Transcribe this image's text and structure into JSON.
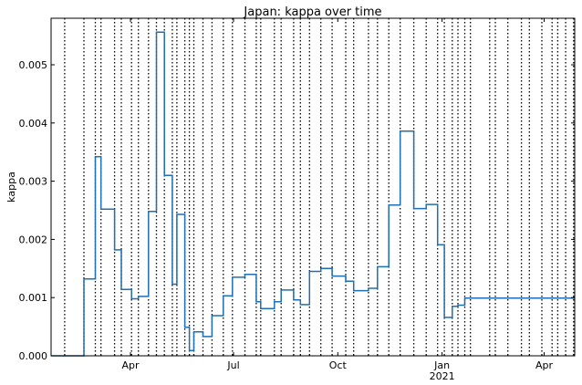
{
  "chart_data": {
    "type": "line",
    "step": "post",
    "title": "Japan: kappa over time",
    "ylabel": "kappa",
    "xlabel": "",
    "xlim": [
      "2020-01-22",
      "2021-04-28"
    ],
    "ylim": [
      0,
      0.0058
    ],
    "y_ticks": [
      "0.000",
      "0.001",
      "0.002",
      "0.003",
      "0.004",
      "0.005"
    ],
    "y_tick_values": [
      0,
      0.001,
      0.002,
      0.003,
      0.004,
      0.005
    ],
    "x_ticks": [
      {
        "date": "2020-04-01",
        "label": "Apr",
        "sublabel": ""
      },
      {
        "date": "2020-07-01",
        "label": "Jul",
        "sublabel": ""
      },
      {
        "date": "2020-10-01",
        "label": "Oct",
        "sublabel": ""
      },
      {
        "date": "2021-01-01",
        "label": "Jan",
        "sublabel": "2021"
      },
      {
        "date": "2021-04-01",
        "label": "Apr",
        "sublabel": ""
      }
    ],
    "change_dates": [
      "2020-02-03",
      "2020-02-20",
      "2020-03-01",
      "2020-03-06",
      "2020-03-18",
      "2020-03-24",
      "2020-04-02",
      "2020-04-08",
      "2020-04-17",
      "2020-04-24",
      "2020-05-01",
      "2020-05-08",
      "2020-05-12",
      "2020-05-19",
      "2020-05-23",
      "2020-05-27",
      "2020-06-04",
      "2020-06-12",
      "2020-06-22",
      "2020-06-30",
      "2020-07-11",
      "2020-07-21",
      "2020-07-25",
      "2020-08-06",
      "2020-08-12",
      "2020-08-23",
      "2020-08-29",
      "2020-09-06",
      "2020-09-16",
      "2020-09-26",
      "2020-10-08",
      "2020-10-15",
      "2020-10-28",
      "2020-11-05",
      "2020-11-15",
      "2020-11-25",
      "2020-12-07",
      "2020-12-18",
      "2020-12-28",
      "2021-01-03",
      "2021-01-10",
      "2021-01-15",
      "2021-01-21",
      "2021-01-26",
      "2021-02-12",
      "2021-02-17",
      "2021-02-28",
      "2021-03-12",
      "2021-03-19",
      "2021-03-30",
      "2021-04-08",
      "2021-04-13",
      "2021-04-20",
      "2021-04-27"
    ],
    "series": [
      {
        "color": "#1f6fb2",
        "x": [
          "2020-01-22",
          "2020-02-03",
          "2020-02-20",
          "2020-03-01",
          "2020-03-06",
          "2020-03-18",
          "2020-03-24",
          "2020-04-02",
          "2020-04-08",
          "2020-04-17",
          "2020-04-24",
          "2020-05-01",
          "2020-05-08",
          "2020-05-12",
          "2020-05-19",
          "2020-05-23",
          "2020-05-27",
          "2020-06-04",
          "2020-06-12",
          "2020-06-22",
          "2020-06-30",
          "2020-07-11",
          "2020-07-21",
          "2020-07-25",
          "2020-08-06",
          "2020-08-12",
          "2020-08-23",
          "2020-08-29",
          "2020-09-06",
          "2020-09-16",
          "2020-09-26",
          "2020-10-08",
          "2020-10-15",
          "2020-10-28",
          "2020-11-05",
          "2020-11-15",
          "2020-11-25",
          "2020-12-07",
          "2020-12-18",
          "2020-12-28",
          "2021-01-03",
          "2021-01-10",
          "2021-01-15",
          "2021-01-21",
          "2021-01-26",
          "2021-02-12",
          "2021-02-17",
          "2021-02-28",
          "2021-03-12",
          "2021-03-19",
          "2021-03-30",
          "2021-04-08",
          "2021-04-13",
          "2021-04-20",
          "2021-04-27",
          "2021-04-28"
        ],
        "y": [
          0.0,
          0.0,
          0.00132,
          0.00342,
          0.00252,
          0.00182,
          0.00114,
          0.00098,
          0.00102,
          0.00248,
          0.00556,
          0.0031,
          0.00123,
          0.00243,
          0.00049,
          9e-05,
          0.00041,
          0.00033,
          0.00069,
          0.00103,
          0.00135,
          0.0014,
          0.00093,
          0.00081,
          0.00093,
          0.00113,
          0.00096,
          0.00088,
          0.00145,
          0.0015,
          0.00137,
          0.00128,
          0.00112,
          0.00116,
          0.00153,
          0.00259,
          0.00386,
          0.00253,
          0.0026,
          0.00191,
          0.00066,
          0.00085,
          0.00087,
          0.00099,
          0.00099,
          0.00099,
          0.00099,
          0.00099,
          0.00099,
          0.00099,
          0.00099,
          0.00099,
          0.00099,
          0.00099,
          0.00099,
          0.00099
        ]
      }
    ],
    "grid": false
  }
}
